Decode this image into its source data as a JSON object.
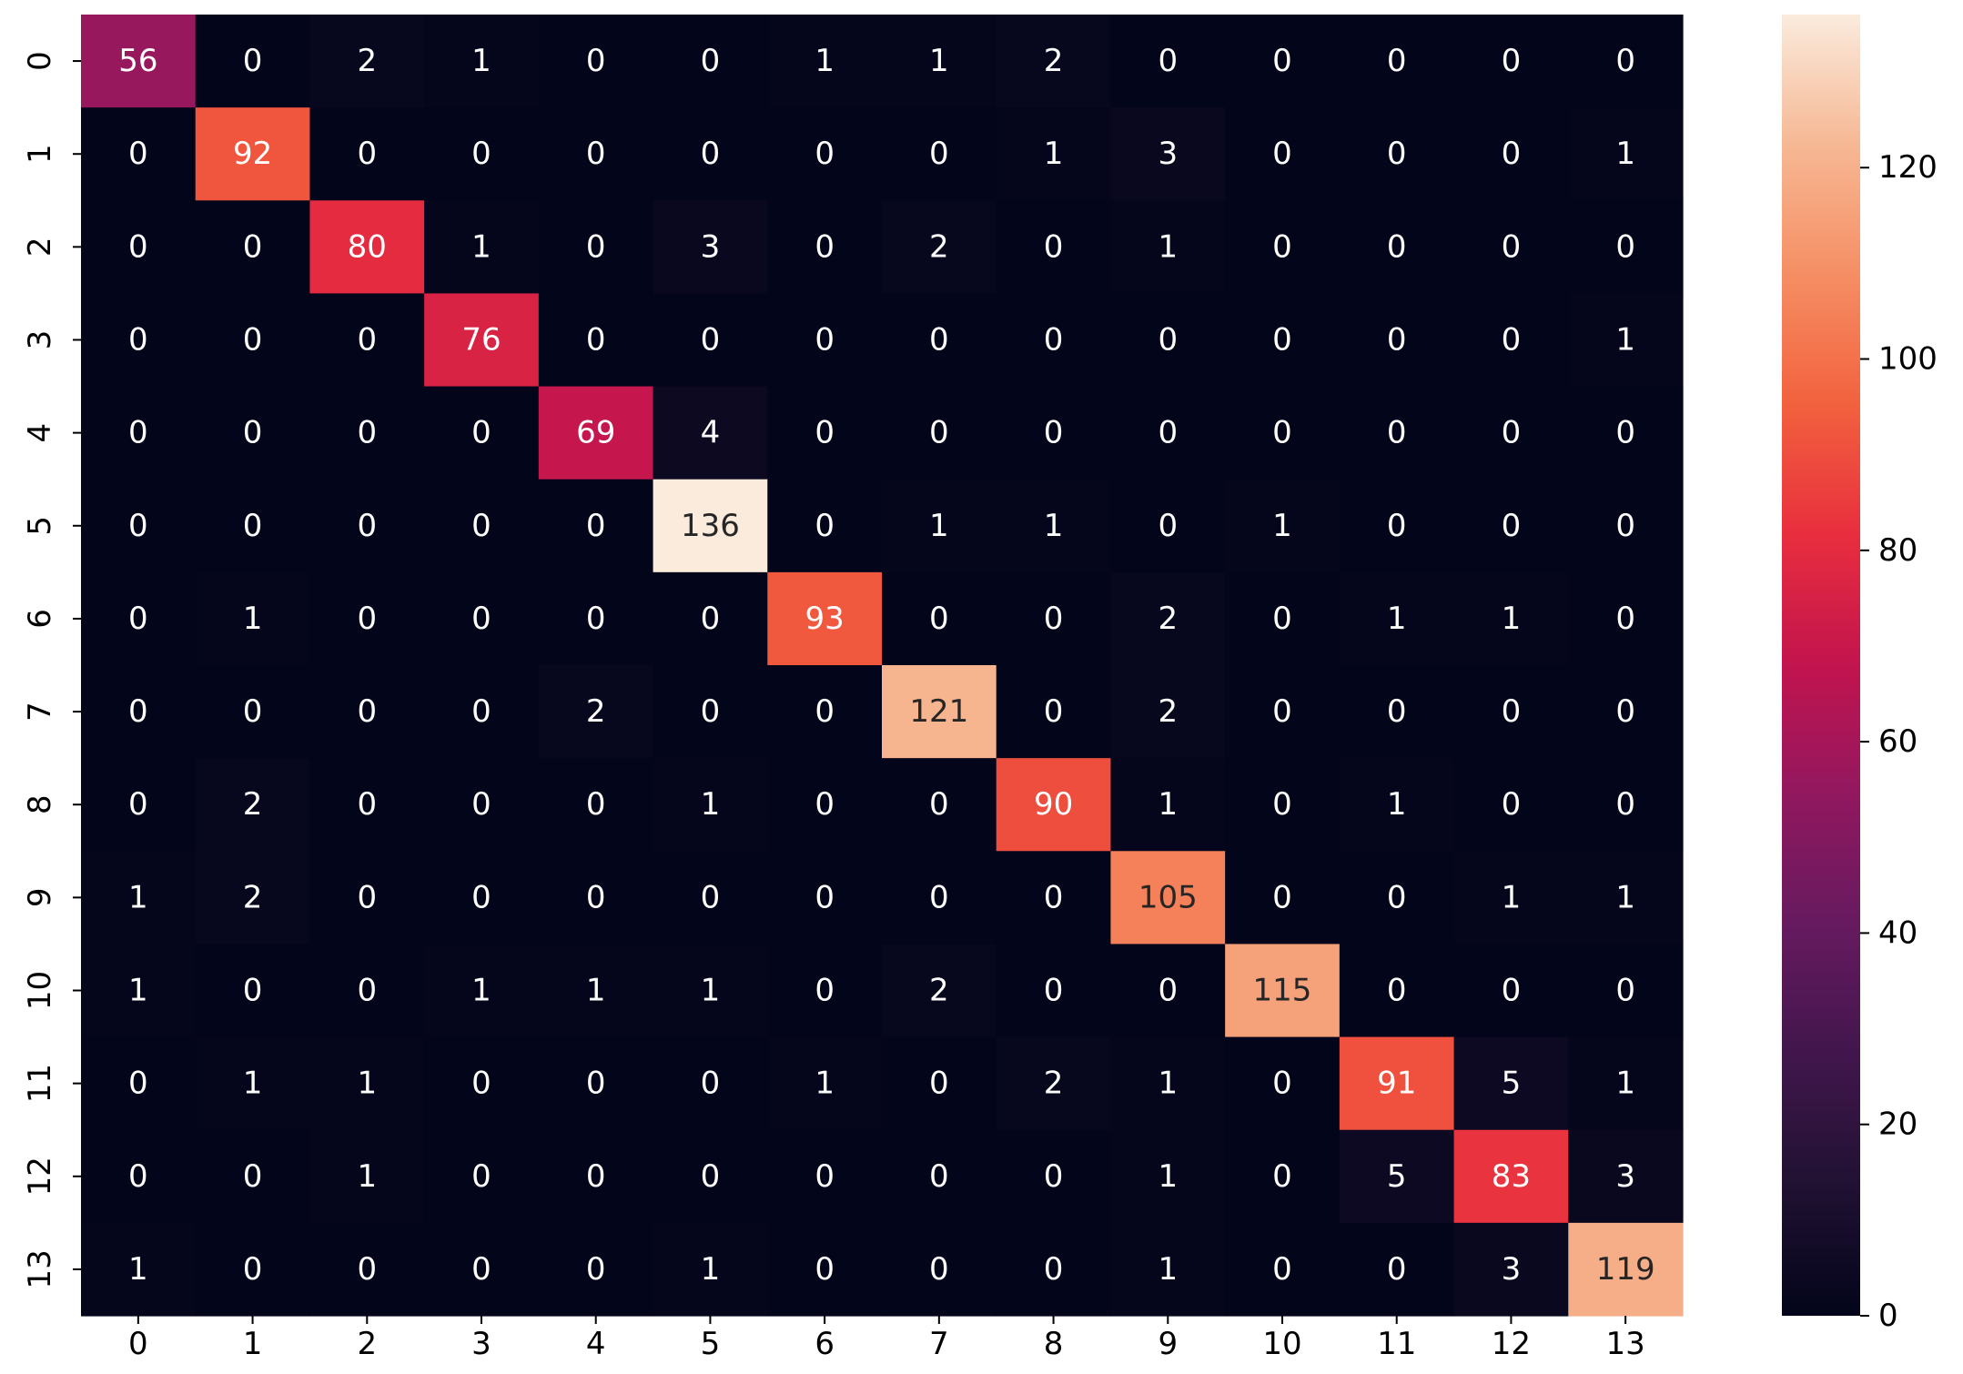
{
  "chart_data": {
    "type": "heatmap",
    "title": "",
    "xlabel": "",
    "ylabel": "",
    "x_tick_labels": [
      "0",
      "1",
      "2",
      "3",
      "4",
      "5",
      "6",
      "7",
      "8",
      "9",
      "10",
      "11",
      "12",
      "13"
    ],
    "y_tick_labels": [
      "0",
      "1",
      "2",
      "3",
      "4",
      "5",
      "6",
      "7",
      "8",
      "9",
      "10",
      "11",
      "12",
      "13"
    ],
    "matrix": [
      [
        56,
        0,
        2,
        1,
        0,
        0,
        1,
        1,
        2,
        0,
        0,
        0,
        0,
        0
      ],
      [
        0,
        92,
        0,
        0,
        0,
        0,
        0,
        0,
        1,
        3,
        0,
        0,
        0,
        1
      ],
      [
        0,
        0,
        80,
        1,
        0,
        3,
        0,
        2,
        0,
        1,
        0,
        0,
        0,
        0
      ],
      [
        0,
        0,
        0,
        76,
        0,
        0,
        0,
        0,
        0,
        0,
        0,
        0,
        0,
        1
      ],
      [
        0,
        0,
        0,
        0,
        69,
        4,
        0,
        0,
        0,
        0,
        0,
        0,
        0,
        0
      ],
      [
        0,
        0,
        0,
        0,
        0,
        136,
        0,
        1,
        1,
        0,
        1,
        0,
        0,
        0
      ],
      [
        0,
        1,
        0,
        0,
        0,
        0,
        93,
        0,
        0,
        2,
        0,
        1,
        1,
        0
      ],
      [
        0,
        0,
        0,
        0,
        2,
        0,
        0,
        121,
        0,
        2,
        0,
        0,
        0,
        0
      ],
      [
        0,
        2,
        0,
        0,
        0,
        1,
        0,
        0,
        90,
        1,
        0,
        1,
        0,
        0
      ],
      [
        1,
        2,
        0,
        0,
        0,
        0,
        0,
        0,
        0,
        105,
        0,
        0,
        1,
        1
      ],
      [
        1,
        0,
        0,
        1,
        1,
        1,
        0,
        2,
        0,
        0,
        115,
        0,
        0,
        0
      ],
      [
        0,
        1,
        1,
        0,
        0,
        0,
        1,
        0,
        2,
        1,
        0,
        91,
        5,
        1
      ],
      [
        0,
        0,
        1,
        0,
        0,
        0,
        0,
        0,
        0,
        1,
        0,
        5,
        83,
        3
      ],
      [
        1,
        0,
        0,
        0,
        0,
        1,
        0,
        0,
        0,
        1,
        0,
        0,
        3,
        119
      ]
    ],
    "color_range": [
      0,
      136
    ],
    "colormap": "rocket",
    "colorbar_ticks": [
      0,
      20,
      40,
      60,
      80,
      100,
      120
    ],
    "annotations": true,
    "grid": false,
    "legend": "colorbar-right"
  }
}
